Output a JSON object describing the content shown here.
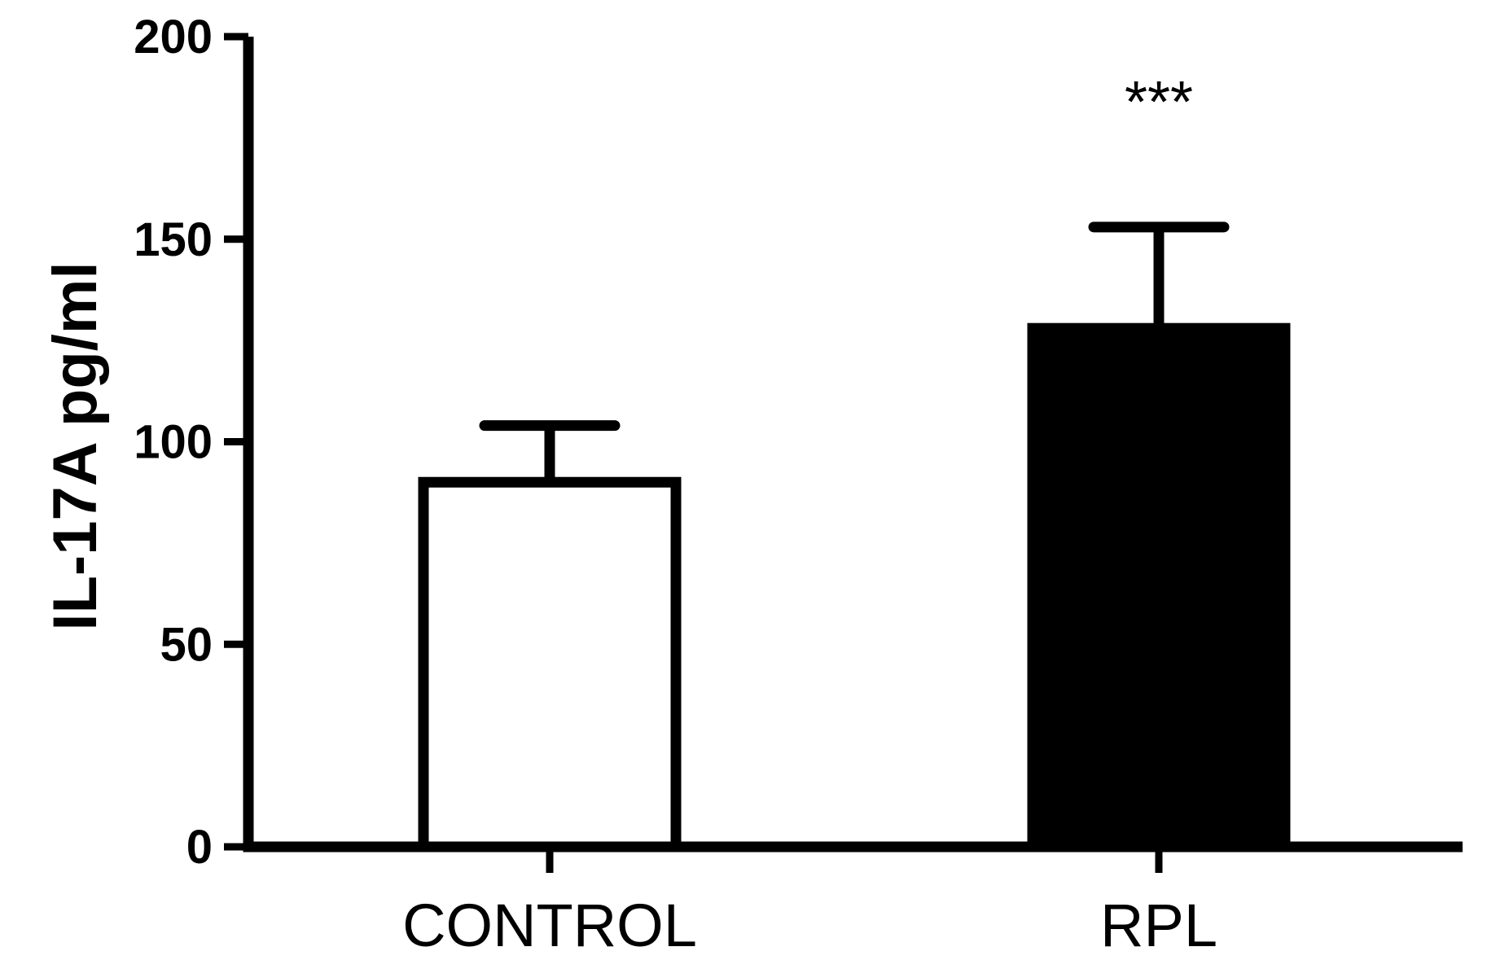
{
  "chart_data": {
    "type": "bar",
    "title": "",
    "xlabel": "",
    "ylabel": "IL-17A pg/ml",
    "ylim": [
      0,
      200
    ],
    "yticks": [
      0,
      50,
      100,
      150,
      200
    ],
    "categories": [
      "CONTROL",
      "RPL"
    ],
    "values": [
      90,
      128
    ],
    "errors": [
      14,
      25
    ],
    "annotations": [
      "",
      "***"
    ],
    "bar_fills": [
      "#ffffff",
      "#000000"
    ],
    "bar_stroke": "#000000",
    "grid": false,
    "legend": "none"
  }
}
